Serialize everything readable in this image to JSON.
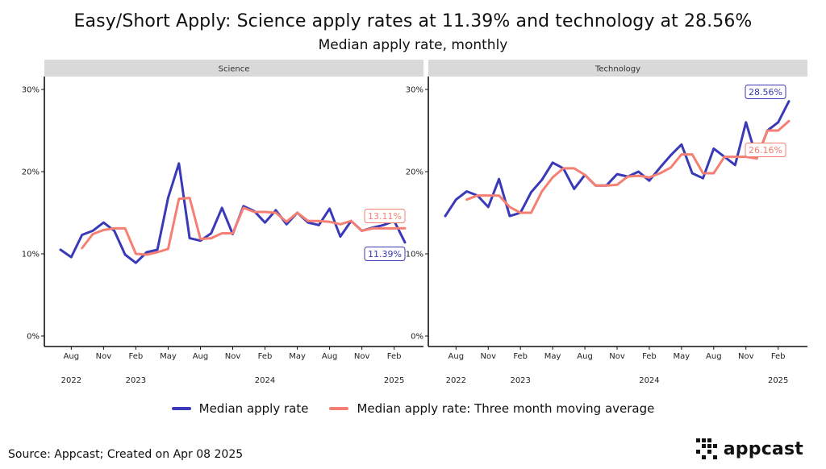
{
  "header": {
    "title": "Easy/Short Apply: Science apply rates at 11.39% and technology at 28.56%",
    "subtitle": "Median apply rate, monthly"
  },
  "legend": {
    "items": [
      {
        "label": "Median apply rate",
        "color": "#3a3ab8"
      },
      {
        "label": "Median apply rate: Three month moving average",
        "color": "#f47f72"
      }
    ]
  },
  "footer": {
    "source": "Source: Appcast; Created on Apr 08 2025",
    "logo_text": "appcast"
  },
  "chart_data": {
    "type": "line",
    "y_ticks": [
      "0%",
      "10%",
      "20%",
      "30%"
    ],
    "y_tick_values": [
      0,
      10,
      20,
      30
    ],
    "ylim": [
      0,
      31
    ],
    "x_month_ticks": [
      {
        "i": 1,
        "label": "Aug"
      },
      {
        "i": 4,
        "label": "Nov"
      },
      {
        "i": 7,
        "label": "Feb"
      },
      {
        "i": 10,
        "label": "May"
      },
      {
        "i": 13,
        "label": "Aug"
      },
      {
        "i": 16,
        "label": "Nov"
      },
      {
        "i": 19,
        "label": "Feb"
      },
      {
        "i": 22,
        "label": "May"
      },
      {
        "i": 25,
        "label": "Aug"
      },
      {
        "i": 28,
        "label": "Nov"
      },
      {
        "i": 31,
        "label": "Feb"
      }
    ],
    "x_year_ticks": [
      {
        "i": 1,
        "label": "2022"
      },
      {
        "i": 7,
        "label": "2023"
      },
      {
        "i": 19,
        "label": "2024"
      },
      {
        "i": 31,
        "label": "2025"
      }
    ],
    "months_start": "2022-07",
    "panels": [
      {
        "name": "Science",
        "series": [
          {
            "name": "Median apply rate",
            "color": "#3a3ab8",
            "values": [
              10.5,
              9.6,
              12.3,
              12.8,
              13.8,
              12.8,
              9.9,
              8.9,
              10.2,
              10.5,
              16.8,
              21.0,
              11.9,
              11.6,
              12.5,
              15.6,
              12.4,
              15.8,
              15.2,
              13.8,
              15.3,
              13.6,
              15.0,
              13.8,
              13.5,
              15.5,
              12.1,
              14.0,
              12.8,
              13.2,
              13.5,
              14.0,
              11.39
            ]
          },
          {
            "name": "Median apply rate: Three month moving average",
            "color": "#f47f72",
            "values": [
              null,
              null,
              10.7,
              12.4,
              12.9,
              13.1,
              13.1,
              10.0,
              9.9,
              10.2,
              10.6,
              16.7,
              16.8,
              11.8,
              11.9,
              12.5,
              12.5,
              15.6,
              15.1,
              15.1,
              15.0,
              13.9,
              15.0,
              14.0,
              14.0,
              13.9,
              13.6,
              14.0,
              12.8,
              13.1,
              13.1,
              13.1,
              13.11
            ]
          }
        ],
        "end_labels": [
          {
            "text": "13.11%",
            "color": "#f47f72",
            "value": 13.11
          },
          {
            "text": "11.39%",
            "color": "#3a3ab8",
            "value": 11.39
          }
        ]
      },
      {
        "name": "Technology",
        "series": [
          {
            "name": "Median apply rate",
            "color": "#3a3ab8",
            "values": [
              14.6,
              16.6,
              17.6,
              17.1,
              15.7,
              19.1,
              14.6,
              15.0,
              17.5,
              19.0,
              21.1,
              20.4,
              17.9,
              19.6,
              18.3,
              18.3,
              19.7,
              19.4,
              20.0,
              18.9,
              20.5,
              22.0,
              23.3,
              19.8,
              19.2,
              22.8,
              21.8,
              20.8,
              26.0,
              21.6,
              25.0,
              26.0,
              28.56
            ]
          },
          {
            "name": "Median apply rate: Three month moving average",
            "color": "#f47f72",
            "values": [
              null,
              null,
              16.6,
              17.1,
              17.1,
              17.1,
              15.7,
              15.0,
              15.0,
              17.6,
              19.3,
              20.4,
              20.4,
              19.6,
              18.3,
              18.3,
              18.4,
              19.4,
              19.5,
              19.3,
              19.8,
              20.5,
              22.1,
              22.1,
              19.8,
              19.8,
              21.8,
              21.8,
              21.8,
              21.6,
              25.0,
              25.0,
              26.16
            ]
          }
        ],
        "end_labels": [
          {
            "text": "28.56%",
            "color": "#3a3ab8",
            "value": 28.56
          },
          {
            "text": "26.16%",
            "color": "#f47f72",
            "value": 26.16
          }
        ]
      }
    ]
  }
}
